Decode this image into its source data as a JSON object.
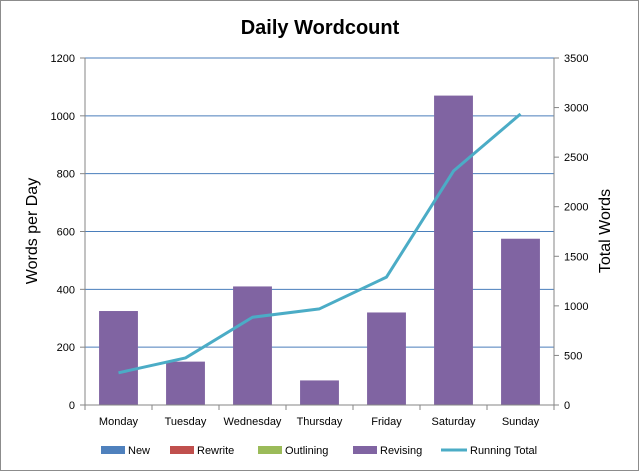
{
  "chart_data": {
    "type": "bar",
    "title": "Daily Wordcount",
    "ylabel": "Words per Day",
    "y2label": "Total Words",
    "categories": [
      "Monday",
      "Tuesday",
      "Wednesday",
      "Thursday",
      "Friday",
      "Saturday",
      "Sunday"
    ],
    "ylim": [
      0,
      1200
    ],
    "yticks": [
      0,
      200,
      400,
      600,
      800,
      1000,
      1200
    ],
    "y2lim": [
      0,
      3500
    ],
    "y2ticks": [
      0,
      500,
      1000,
      1500,
      2000,
      2500,
      3000,
      3500
    ],
    "grid": true,
    "legend_position": "bottom",
    "series": [
      {
        "name": "New",
        "type": "bar",
        "color": "#4f81bd",
        "values": [
          0,
          0,
          0,
          0,
          0,
          0,
          0
        ]
      },
      {
        "name": "Rewrite",
        "type": "bar",
        "color": "#c0504d",
        "values": [
          0,
          0,
          0,
          0,
          0,
          0,
          0
        ]
      },
      {
        "name": "Outlining",
        "type": "bar",
        "color": "#9bbb59",
        "values": [
          0,
          0,
          0,
          0,
          0,
          0,
          0
        ]
      },
      {
        "name": "Revising",
        "type": "bar",
        "color": "#8064a2",
        "values": [
          325,
          150,
          410,
          85,
          320,
          1070,
          575
        ]
      },
      {
        "name": "Running Total",
        "type": "line",
        "axis": "secondary",
        "color": "#4bacc6",
        "values": [
          325,
          475,
          885,
          970,
          1290,
          2360,
          2935
        ]
      }
    ]
  }
}
